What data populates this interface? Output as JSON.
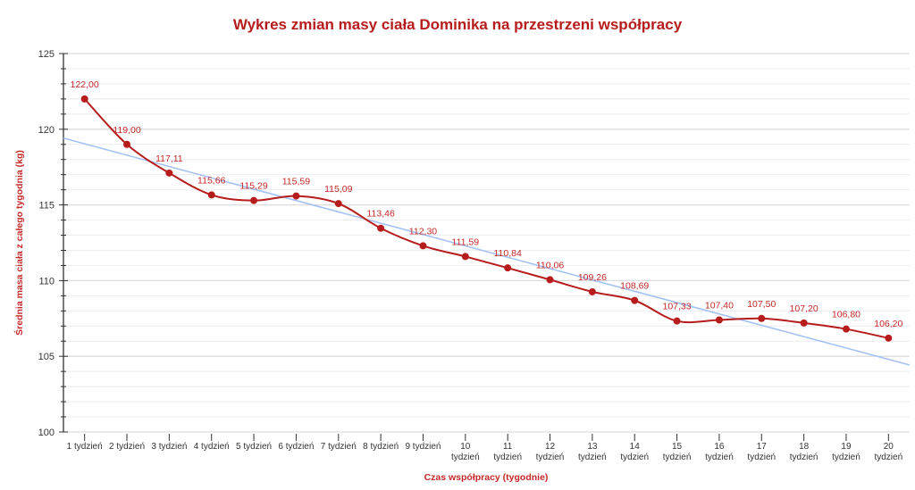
{
  "chart_data": {
    "type": "line",
    "title": "Wykres zmian masy ciała Dominika na przestrzeni współpracy",
    "xlabel": "Czas współpracy (tygodnie)",
    "ylabel": "Średnia masa ciała z całego tygodnia (kg)",
    "ylim": [
      100,
      125
    ],
    "yticks": [
      "100",
      "105",
      "110",
      "115",
      "120",
      "125"
    ],
    "grid": true,
    "categories": [
      "1 tydzień",
      "2 tydzień",
      "3 tydzień",
      "4 tydzień",
      "5 tydzień",
      "6 tydzień",
      "7 tydzień",
      "8 tydzień",
      "9 tydzień",
      "10 tydzień",
      "11 tydzień",
      "12 tydzień",
      "13 tydzień",
      "14 tydzień",
      "15 tydzień",
      "16 tydzień",
      "17 tydzień",
      "18 tydzień",
      "19 tydzień",
      "20 tydzień"
    ],
    "series": [
      {
        "values": [
          122.0,
          119.0,
          117.11,
          115.66,
          115.29,
          115.59,
          115.09,
          113.46,
          112.3,
          111.59,
          110.84,
          110.06,
          109.26,
          108.69,
          107.33,
          107.4,
          107.5,
          107.2,
          106.8,
          106.2
        ],
        "labels": [
          "122,00",
          "119,00",
          "117,11",
          "115,66",
          "115,29",
          "115,59",
          "115,09",
          "113,46",
          "112,30",
          "111,59",
          "110,84",
          "110,06",
          "109,26",
          "108,69",
          "107,33",
          "107,40",
          "107,50",
          "107,20",
          "106,80",
          "106,20"
        ],
        "color": "#b71c1c",
        "smooth": true
      }
    ],
    "trendline": {
      "type": "linear",
      "color": "#a4c2f4"
    }
  }
}
